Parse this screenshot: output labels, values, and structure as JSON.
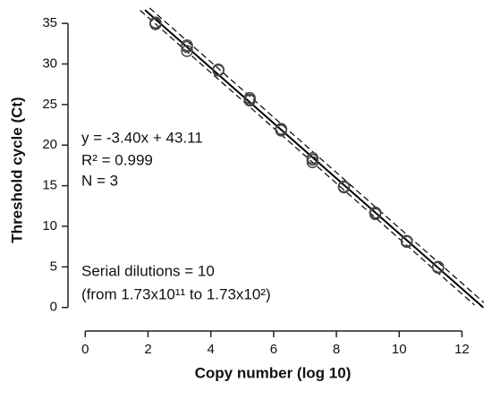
{
  "chart_data": {
    "type": "scatter",
    "x_label": "Copy number (log 10)",
    "y_label": "Threshold cycle (Ct)",
    "xlim": [
      -0.55,
      12.7
    ],
    "ylim": [
      -2.9,
      37
    ],
    "xticks": [
      0,
      2,
      4,
      6,
      8,
      10,
      12
    ],
    "yticks": [
      0,
      5,
      10,
      15,
      20,
      25,
      30,
      35
    ],
    "annotations": [
      "y = -3.40x + 43.11",
      "R² = 0.999",
      "N = 3",
      "Serial dilutions = 10",
      "(from 1.73x10¹¹ to 1.73x10²)"
    ],
    "series": [
      {
        "type": "scatter",
        "color": "#444444",
        "x": [
          2.24,
          2.24,
          2.24,
          3.24,
          3.24,
          3.24,
          4.24,
          4.24,
          4.24,
          5.24,
          5.24,
          5.24,
          6.24,
          6.24,
          6.24,
          7.24,
          7.24,
          7.24,
          8.24,
          8.24,
          8.24,
          9.24,
          9.24,
          9.24,
          10.24,
          10.24,
          10.24,
          11.24,
          11.24,
          11.24
        ],
        "y": [
          35.0,
          35.1,
          34.9,
          32.3,
          32.1,
          31.6,
          29.3,
          29.3,
          29.2,
          25.8,
          25.6,
          25.5,
          22.0,
          21.8,
          21.9,
          18.4,
          18.2,
          17.9,
          14.9,
          14.9,
          14.8,
          11.7,
          11.6,
          11.5,
          8.1,
          8.1,
          8.2,
          5.0,
          5.0,
          4.9
        ]
      },
      {
        "type": "line",
        "color": "#000000",
        "dash": false,
        "x": [
          1.9,
          12.68
        ],
        "y": [
          36.65,
          0.0
        ]
      },
      {
        "type": "line",
        "color": "#000000",
        "dash": true,
        "x": [
          2.05,
          12.7
        ],
        "y": [
          36.9,
          0.6
        ]
      },
      {
        "type": "line",
        "color": "#000000",
        "dash": true,
        "x": [
          1.75,
          12.4
        ],
        "y": [
          36.6,
          0.3
        ]
      }
    ]
  }
}
